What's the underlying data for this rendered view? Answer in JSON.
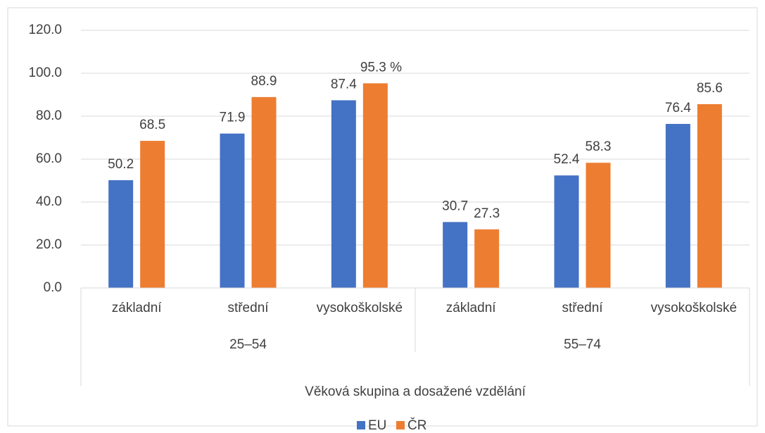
{
  "chart_data": {
    "type": "bar",
    "groups": [
      {
        "name": "25–54",
        "categories": [
          "základní",
          "střední",
          "vysokoškolské"
        ]
      },
      {
        "name": "55–74",
        "categories": [
          "základní",
          "střední",
          "vysokoškolské"
        ]
      }
    ],
    "xlabel": "Věková skupina a dosažené vzdělání",
    "series": [
      {
        "name": "EU",
        "color": "#4472c4",
        "values": [
          50.2,
          71.9,
          87.4,
          30.7,
          52.4,
          76.4
        ]
      },
      {
        "name": "ČR",
        "color": "#ed7d31",
        "values": [
          68.5,
          88.9,
          95.3,
          27.3,
          58.3,
          85.6
        ],
        "value_labels": [
          "68.5",
          "88.9",
          "95.3 %",
          "27.3",
          "58.3",
          "85.6"
        ]
      }
    ],
    "ylim": [
      0,
      120
    ],
    "yticks": [
      {
        "value": 0,
        "label": "0.0"
      },
      {
        "value": 20,
        "label": "20.0"
      },
      {
        "value": 40,
        "label": "40.0"
      },
      {
        "value": 60,
        "label": "60.0"
      },
      {
        "value": 80,
        "label": "80.0"
      },
      {
        "value": 100,
        "label": "100.0"
      },
      {
        "value": 120,
        "label": "120.0"
      }
    ],
    "grid": true,
    "legend": "bottom"
  }
}
